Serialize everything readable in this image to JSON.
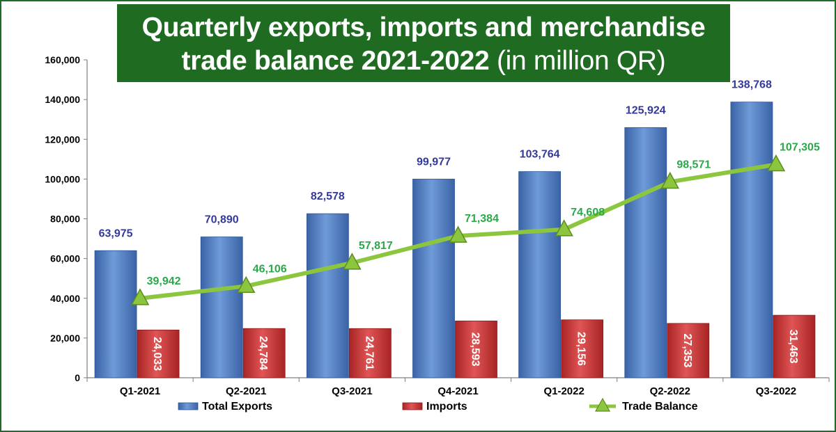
{
  "title": {
    "line1": "Quarterly exports, imports and merchandise",
    "line2_bold": "trade balance 2021-2022",
    "line2_light": "(in million QR)"
  },
  "colors": {
    "exports": "#4f81c7",
    "imports": "#cc3333",
    "balance": "#8cc63f",
    "title_bg": "#1f6b22"
  },
  "chart_data": {
    "type": "bar",
    "categories": [
      "Q1-2021",
      "Q2-2021",
      "Q3-2021",
      "Q4-2021",
      "Q1-2022",
      "Q2-2022",
      "Q3-2022"
    ],
    "series": [
      {
        "name": "Total Exports",
        "type": "bar",
        "values": [
          63975,
          70890,
          82578,
          99977,
          103764,
          125924,
          138768
        ],
        "labels": [
          "63,975",
          "70,890",
          "82,578",
          "99,977",
          "103,764",
          "125,924",
          "138,768"
        ]
      },
      {
        "name": "Imports",
        "type": "bar",
        "values": [
          24033,
          24784,
          24761,
          28593,
          29156,
          27353,
          31463
        ],
        "labels": [
          "24,033",
          "24,784",
          "24,761",
          "28,593",
          "29,156",
          "27,353",
          "31,463"
        ]
      },
      {
        "name": "Trade Balance",
        "type": "line",
        "values": [
          39942,
          46106,
          57817,
          71384,
          74608,
          98571,
          107305
        ],
        "labels": [
          "39,942",
          "46,106",
          "57,817",
          "71,384",
          "74,608",
          "98,571",
          "107,305"
        ]
      }
    ],
    "ylim": [
      0,
      160000
    ],
    "yticks": [
      0,
      20000,
      40000,
      60000,
      80000,
      100000,
      120000,
      140000,
      160000
    ],
    "ytick_labels": [
      "0",
      "20,000",
      "40,000",
      "60,000",
      "80,000",
      "100,000",
      "120,000",
      "140,000",
      "160,000"
    ],
    "grid": false,
    "legend_position": "bottom"
  }
}
